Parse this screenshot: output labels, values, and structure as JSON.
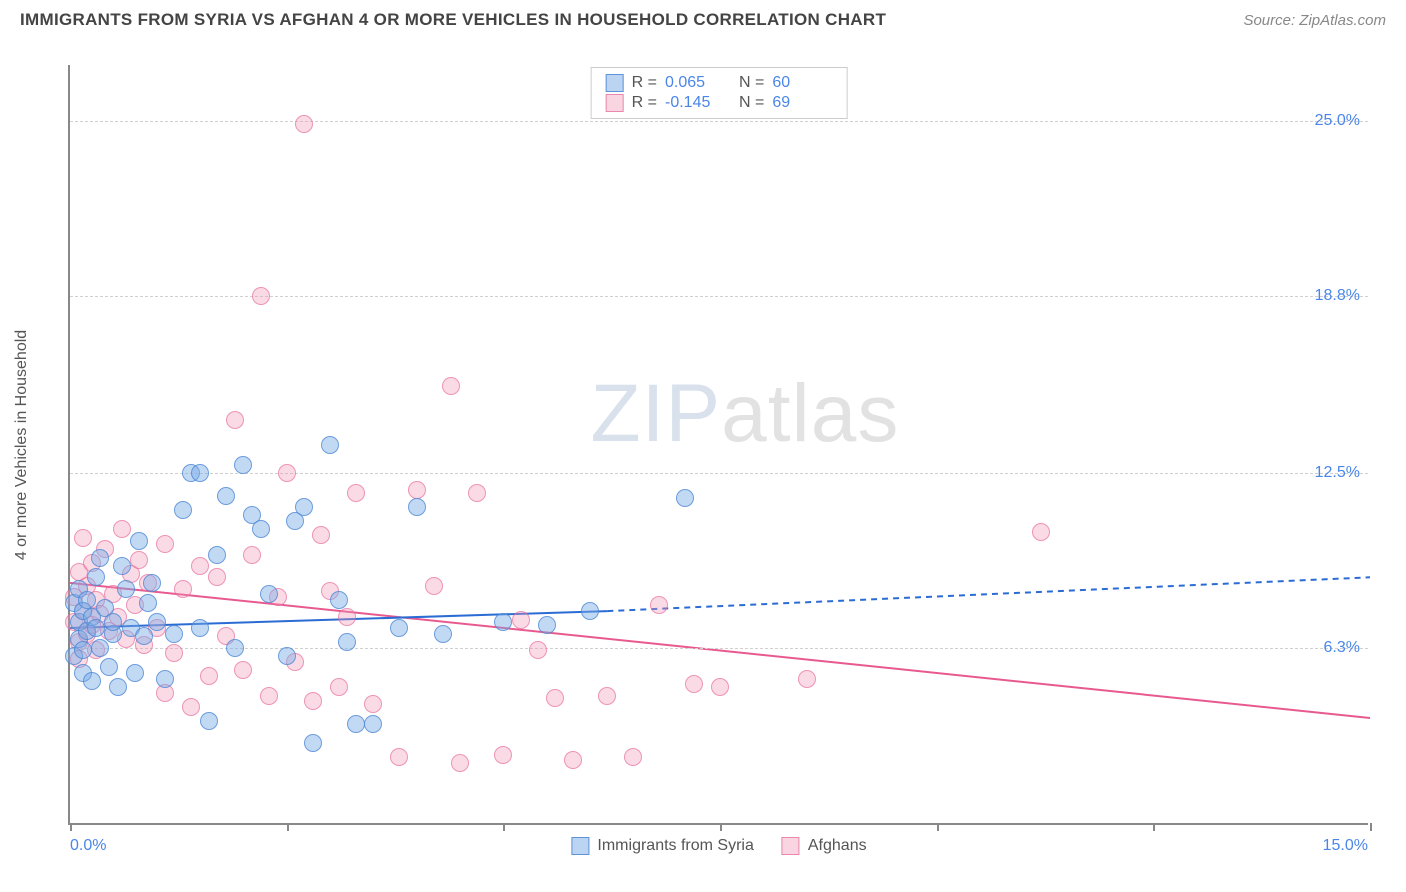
{
  "header": {
    "title": "IMMIGRANTS FROM SYRIA VS AFGHAN 4 OR MORE VEHICLES IN HOUSEHOLD CORRELATION CHART",
    "source": "Source: ZipAtlas.com"
  },
  "watermark": {
    "part1": "ZIP",
    "part2": "atlas"
  },
  "chart": {
    "type": "scatter",
    "y_axis_label": "4 or more Vehicles in Household",
    "xlim": [
      0,
      15
    ],
    "ylim": [
      0,
      27
    ],
    "x_ticks": [
      0,
      2.5,
      5,
      7.5,
      10,
      12.5,
      15
    ],
    "x_tick_labels_shown": {
      "left": "0.0%",
      "right": "15.0%"
    },
    "y_gridlines": [
      6.3,
      12.5,
      18.8,
      25.0
    ],
    "y_tick_labels": [
      "6.3%",
      "12.5%",
      "18.8%",
      "25.0%"
    ],
    "background_color": "#ffffff",
    "grid_color": "#d0d0d0",
    "axis_color": "#888888",
    "tick_label_color": "#4a86e8",
    "series": [
      {
        "name": "Immigrants from Syria",
        "color_fill": "rgba(120,170,230,0.45)",
        "color_stroke": "rgba(70,130,210,0.7)",
        "marker_radius": 9,
        "R": "0.065",
        "N": "60",
        "trendline": {
          "x1": 0,
          "y1": 7.0,
          "x2": 6.2,
          "y2": 7.6,
          "x2_dash": 15,
          "y2_dash": 8.8,
          "color": "#2b6cd4",
          "width": 2
        },
        "points": [
          [
            0.05,
            6.0
          ],
          [
            0.05,
            7.9
          ],
          [
            0.1,
            6.6
          ],
          [
            0.1,
            7.2
          ],
          [
            0.1,
            8.4
          ],
          [
            0.15,
            6.2
          ],
          [
            0.15,
            5.4
          ],
          [
            0.15,
            7.6
          ],
          [
            0.2,
            6.9
          ],
          [
            0.2,
            8.0
          ],
          [
            0.25,
            7.4
          ],
          [
            0.25,
            5.1
          ],
          [
            0.3,
            7.0
          ],
          [
            0.3,
            8.8
          ],
          [
            0.35,
            6.3
          ],
          [
            0.35,
            9.5
          ],
          [
            0.4,
            7.7
          ],
          [
            0.45,
            5.6
          ],
          [
            0.5,
            6.8
          ],
          [
            0.5,
            7.2
          ],
          [
            0.55,
            4.9
          ],
          [
            0.6,
            9.2
          ],
          [
            0.65,
            8.4
          ],
          [
            0.7,
            7.0
          ],
          [
            0.75,
            5.4
          ],
          [
            0.8,
            10.1
          ],
          [
            0.85,
            6.7
          ],
          [
            0.9,
            7.9
          ],
          [
            0.95,
            8.6
          ],
          [
            1.0,
            7.2
          ],
          [
            1.1,
            5.2
          ],
          [
            1.2,
            6.8
          ],
          [
            1.3,
            11.2
          ],
          [
            1.4,
            12.5
          ],
          [
            1.5,
            12.5
          ],
          [
            1.5,
            7.0
          ],
          [
            1.6,
            3.7
          ],
          [
            1.7,
            9.6
          ],
          [
            1.8,
            11.7
          ],
          [
            1.9,
            6.3
          ],
          [
            2.0,
            12.8
          ],
          [
            2.1,
            11.0
          ],
          [
            2.2,
            10.5
          ],
          [
            2.3,
            8.2
          ],
          [
            2.5,
            6.0
          ],
          [
            2.6,
            10.8
          ],
          [
            2.7,
            11.3
          ],
          [
            2.8,
            2.9
          ],
          [
            3.0,
            13.5
          ],
          [
            3.1,
            8.0
          ],
          [
            3.2,
            6.5
          ],
          [
            3.3,
            3.6
          ],
          [
            3.5,
            3.6
          ],
          [
            3.8,
            7.0
          ],
          [
            4.0,
            11.3
          ],
          [
            4.3,
            6.8
          ],
          [
            5.0,
            7.2
          ],
          [
            5.5,
            7.1
          ],
          [
            6.0,
            7.6
          ],
          [
            7.1,
            11.6
          ]
        ]
      },
      {
        "name": "Afghans",
        "color_fill": "rgba(240,150,180,0.35)",
        "color_stroke": "rgba(230,100,150,0.6)",
        "marker_radius": 9,
        "R": "-0.145",
        "N": "69",
        "trendline": {
          "x1": 0,
          "y1": 8.6,
          "x2": 15,
          "y2": 3.8,
          "color": "#e85a8f",
          "width": 2
        },
        "points": [
          [
            0.05,
            7.2
          ],
          [
            0.05,
            8.1
          ],
          [
            0.1,
            6.5
          ],
          [
            0.1,
            9.0
          ],
          [
            0.1,
            5.9
          ],
          [
            0.15,
            7.6
          ],
          [
            0.15,
            10.2
          ],
          [
            0.2,
            6.8
          ],
          [
            0.2,
            8.5
          ],
          [
            0.25,
            7.1
          ],
          [
            0.25,
            9.3
          ],
          [
            0.3,
            6.2
          ],
          [
            0.3,
            8.0
          ],
          [
            0.35,
            7.5
          ],
          [
            0.4,
            9.8
          ],
          [
            0.45,
            6.9
          ],
          [
            0.5,
            8.2
          ],
          [
            0.55,
            7.4
          ],
          [
            0.6,
            10.5
          ],
          [
            0.65,
            6.6
          ],
          [
            0.7,
            8.9
          ],
          [
            0.75,
            7.8
          ],
          [
            0.8,
            9.4
          ],
          [
            0.85,
            6.4
          ],
          [
            0.9,
            8.6
          ],
          [
            1.0,
            7.0
          ],
          [
            1.1,
            10.0
          ],
          [
            1.1,
            4.7
          ],
          [
            1.2,
            6.1
          ],
          [
            1.3,
            8.4
          ],
          [
            1.4,
            4.2
          ],
          [
            1.5,
            9.2
          ],
          [
            1.6,
            5.3
          ],
          [
            1.7,
            8.8
          ],
          [
            1.8,
            6.7
          ],
          [
            1.9,
            14.4
          ],
          [
            2.0,
            5.5
          ],
          [
            2.1,
            9.6
          ],
          [
            2.2,
            18.8
          ],
          [
            2.3,
            4.6
          ],
          [
            2.4,
            8.1
          ],
          [
            2.5,
            12.5
          ],
          [
            2.6,
            5.8
          ],
          [
            2.7,
            24.9
          ],
          [
            2.8,
            4.4
          ],
          [
            2.9,
            10.3
          ],
          [
            3.0,
            8.3
          ],
          [
            3.1,
            4.9
          ],
          [
            3.2,
            7.4
          ],
          [
            3.3,
            11.8
          ],
          [
            3.5,
            4.3
          ],
          [
            3.8,
            2.4
          ],
          [
            4.0,
            11.9
          ],
          [
            4.2,
            8.5
          ],
          [
            4.4,
            15.6
          ],
          [
            4.5,
            2.2
          ],
          [
            4.7,
            11.8
          ],
          [
            5.0,
            2.5
          ],
          [
            5.2,
            7.3
          ],
          [
            5.4,
            6.2
          ],
          [
            5.6,
            4.5
          ],
          [
            5.8,
            2.3
          ],
          [
            6.2,
            4.6
          ],
          [
            6.5,
            2.4
          ],
          [
            6.8,
            7.8
          ],
          [
            7.2,
            5.0
          ],
          [
            7.5,
            4.9
          ],
          [
            8.5,
            5.2
          ],
          [
            11.2,
            10.4
          ]
        ]
      }
    ],
    "legend_top": {
      "rows": [
        {
          "swatch": "blue",
          "r_label": "R =",
          "r_val": "0.065",
          "n_label": "N =",
          "n_val": "60"
        },
        {
          "swatch": "pink",
          "r_label": "R =",
          "r_val": "-0.145",
          "n_label": "N =",
          "n_val": "69"
        }
      ]
    },
    "legend_bottom": [
      {
        "swatch": "blue",
        "label": "Immigrants from Syria"
      },
      {
        "swatch": "pink",
        "label": "Afghans"
      }
    ]
  }
}
